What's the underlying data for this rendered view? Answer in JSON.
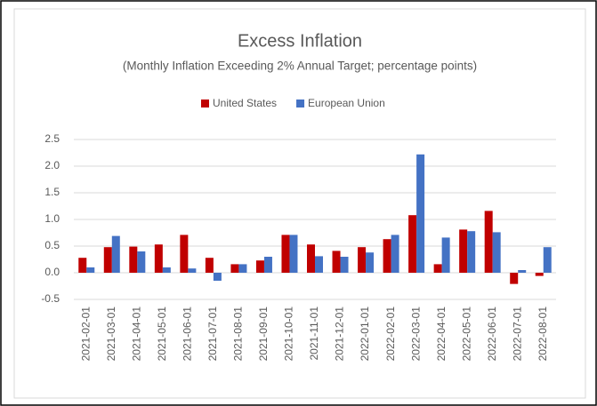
{
  "chart_data": {
    "type": "bar",
    "title": "Excess Inflation",
    "subtitle": "(Monthly Inflation Exceeding 2% Annual Target; percentage points)",
    "categories": [
      "2021-02-01",
      "2021-03-01",
      "2021-04-01",
      "2021-05-01",
      "2021-06-01",
      "2021-07-01",
      "2021-08-01",
      "2021-09-01",
      "2021-10-01",
      "2021-11-01",
      "2021-12-01",
      "2022-01-01",
      "2022-02-01",
      "2022-03-01",
      "2022-04-01",
      "2022-05-01",
      "2022-06-01",
      "2022-07-01",
      "2022-08-01"
    ],
    "series": [
      {
        "name": "United States",
        "color": "#c00000",
        "values": [
          0.28,
          0.48,
          0.49,
          0.53,
          0.71,
          0.28,
          0.16,
          0.23,
          0.71,
          0.53,
          0.41,
          0.48,
          0.63,
          1.08,
          0.16,
          0.81,
          1.16,
          -0.21,
          -0.06
        ]
      },
      {
        "name": "European Union",
        "color": "#4472c4",
        "values": [
          0.1,
          0.69,
          0.4,
          0.1,
          0.08,
          -0.15,
          0.16,
          0.3,
          0.71,
          0.31,
          0.3,
          0.38,
          0.71,
          2.22,
          0.66,
          0.78,
          0.76,
          0.05,
          0.48
        ]
      }
    ],
    "ylim": [
      -0.5,
      2.5
    ],
    "yticks": [
      -0.5,
      {
        "value": 0,
        "label": "0.0"
      },
      0.5,
      {
        "value": 1,
        "label": "1.0"
      },
      1.5,
      {
        "value": 2,
        "label": "2.0"
      },
      2.5
    ],
    "grid": true,
    "legend": "top"
  }
}
